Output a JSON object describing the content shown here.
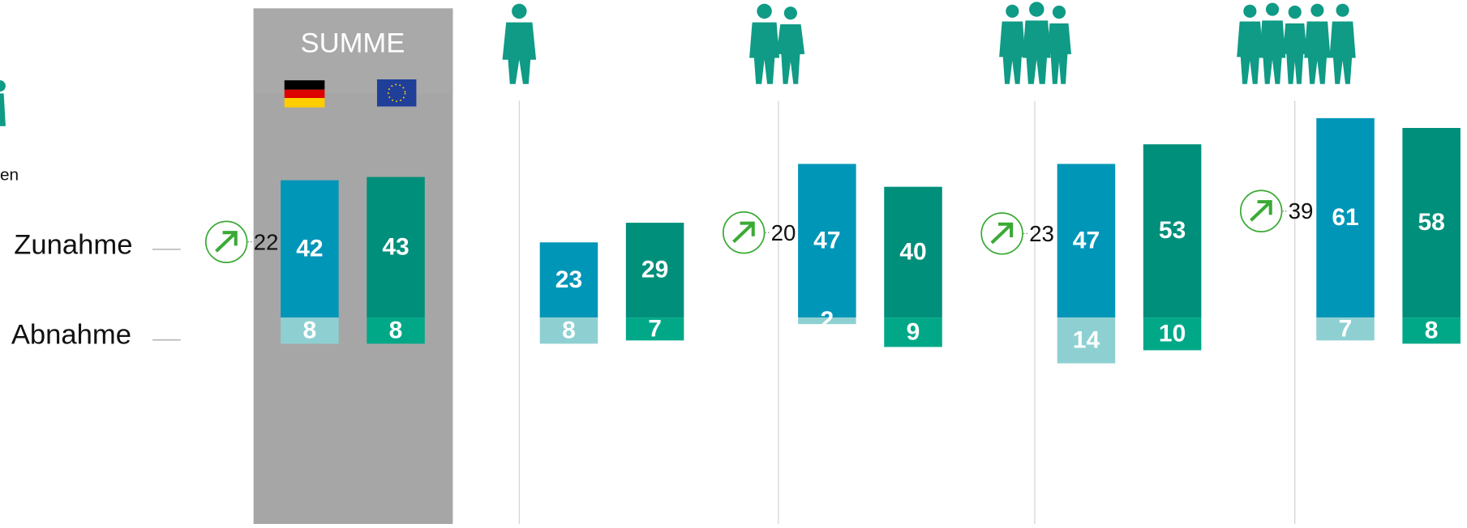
{
  "chart_data": {
    "type": "bar",
    "categories": [
      "SUMME",
      null,
      null,
      null,
      null
    ],
    "series": [
      {
        "color": "#0096b8",
        "direction": "up",
        "values": [
          42,
          23,
          47,
          47,
          61
        ]
      },
      {
        "color": "#008f7b",
        "direction": "up",
        "values": [
          43,
          29,
          40,
          53,
          58
        ]
      },
      {
        "color": "#8ed0d2",
        "direction": "down",
        "values": [
          8,
          8,
          2,
          14,
          7
        ]
      },
      {
        "color": "#00a888",
        "direction": "down",
        "values": [
          8,
          7,
          9,
          10,
          8
        ]
      }
    ],
    "arrow_values": [
      22,
      null,
      20,
      23,
      39
    ],
    "axis_labels": [
      "Zunahme",
      "Abnahme"
    ],
    "cropped_text": "en"
  }
}
